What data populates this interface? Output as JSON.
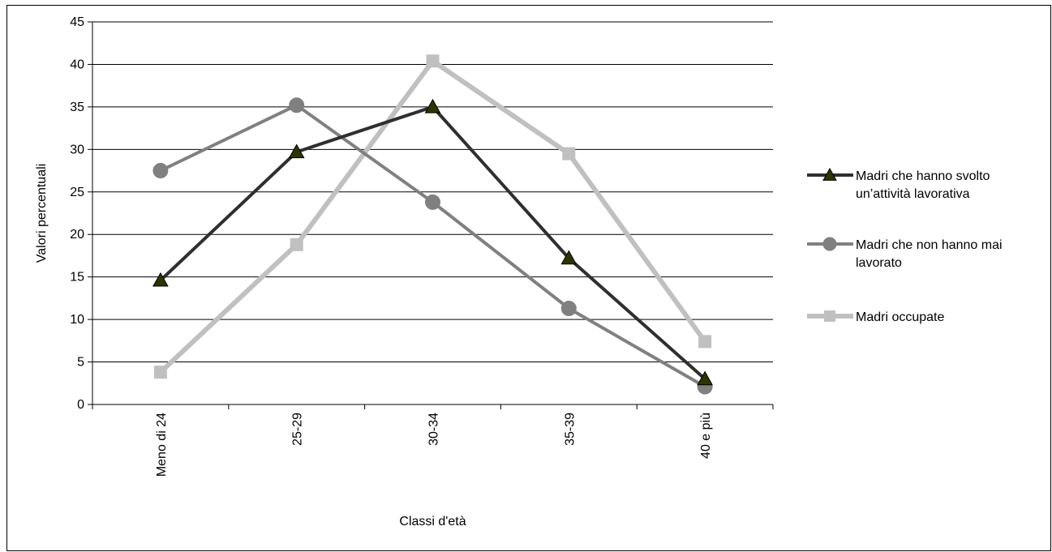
{
  "chart_data": {
    "type": "line",
    "categories": [
      "Meno di 24",
      "25-29",
      "30-34",
      "35-39",
      "40 e più"
    ],
    "ylabel": "Valori percentuali",
    "xlabel": "Classi d'età",
    "ylim": [
      0,
      45
    ],
    "yticks": [
      0,
      5,
      10,
      15,
      20,
      25,
      30,
      35,
      40,
      45
    ],
    "grid": true,
    "legend_position": "right",
    "series": [
      {
        "name": "Madri che hanno svolto un’attività lavorativa",
        "name_lines": [
          "Madri che hanno svolto",
          "un’attività lavorativa"
        ],
        "values": [
          14.6,
          29.7,
          35.0,
          17.2,
          3.0
        ],
        "color": "#2f2f2f",
        "marker_color": "#2e3400",
        "marker": "triangle"
      },
      {
        "name": "Madri che non hanno mai lavorato",
        "name_lines": [
          "Madri che non hanno mai",
          "lavorato"
        ],
        "values": [
          27.5,
          35.2,
          23.8,
          11.3,
          2.1
        ],
        "color": "#808080",
        "marker_color": "#808080",
        "marker": "circle"
      },
      {
        "name": "Madri occupate",
        "name_lines": [
          "Madri occupate"
        ],
        "values": [
          3.8,
          18.8,
          40.4,
          29.5,
          7.4
        ],
        "color": "#c0c0c0",
        "marker_color": "#c0c0c0",
        "marker": "square"
      }
    ]
  }
}
